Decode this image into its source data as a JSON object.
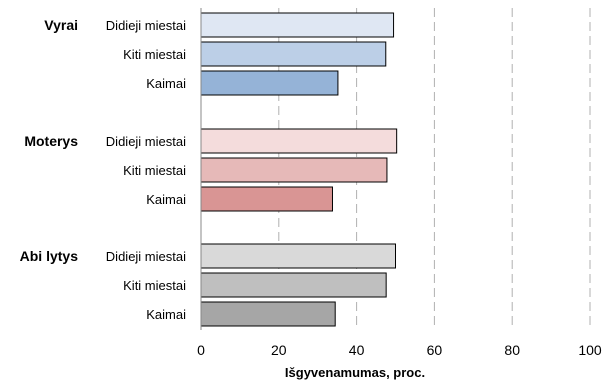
{
  "chart_data": {
    "type": "bar",
    "orientation": "horizontal",
    "xlabel": "Išgyvenamumas, proc.",
    "xlim": [
      0,
      100
    ],
    "xticks": [
      0,
      20,
      40,
      60,
      80,
      100
    ],
    "grid": "vertical dashed",
    "groups": [
      {
        "name": "Vyrai",
        "categories": [
          "Didieji miestai",
          "Kiti miestai",
          "Kaimai"
        ],
        "values": [
          49.5,
          47.5,
          35.2
        ],
        "colors": [
          "#dfe7f3",
          "#bccfe7",
          "#95b3d7"
        ]
      },
      {
        "name": "Moterys",
        "categories": [
          "Didieji miestai",
          "Kiti miestai",
          "Kaimai"
        ],
        "values": [
          50.3,
          47.8,
          33.8
        ],
        "colors": [
          "#f4dcdc",
          "#e6b9b8",
          "#d99594"
        ]
      },
      {
        "name": "Abi lytys",
        "categories": [
          "Didieji miestai",
          "Kiti miestai",
          "Kaimai"
        ],
        "values": [
          50.0,
          47.6,
          34.5
        ],
        "colors": [
          "#d9d9d9",
          "#bfbfbf",
          "#a6a6a6"
        ]
      }
    ]
  }
}
